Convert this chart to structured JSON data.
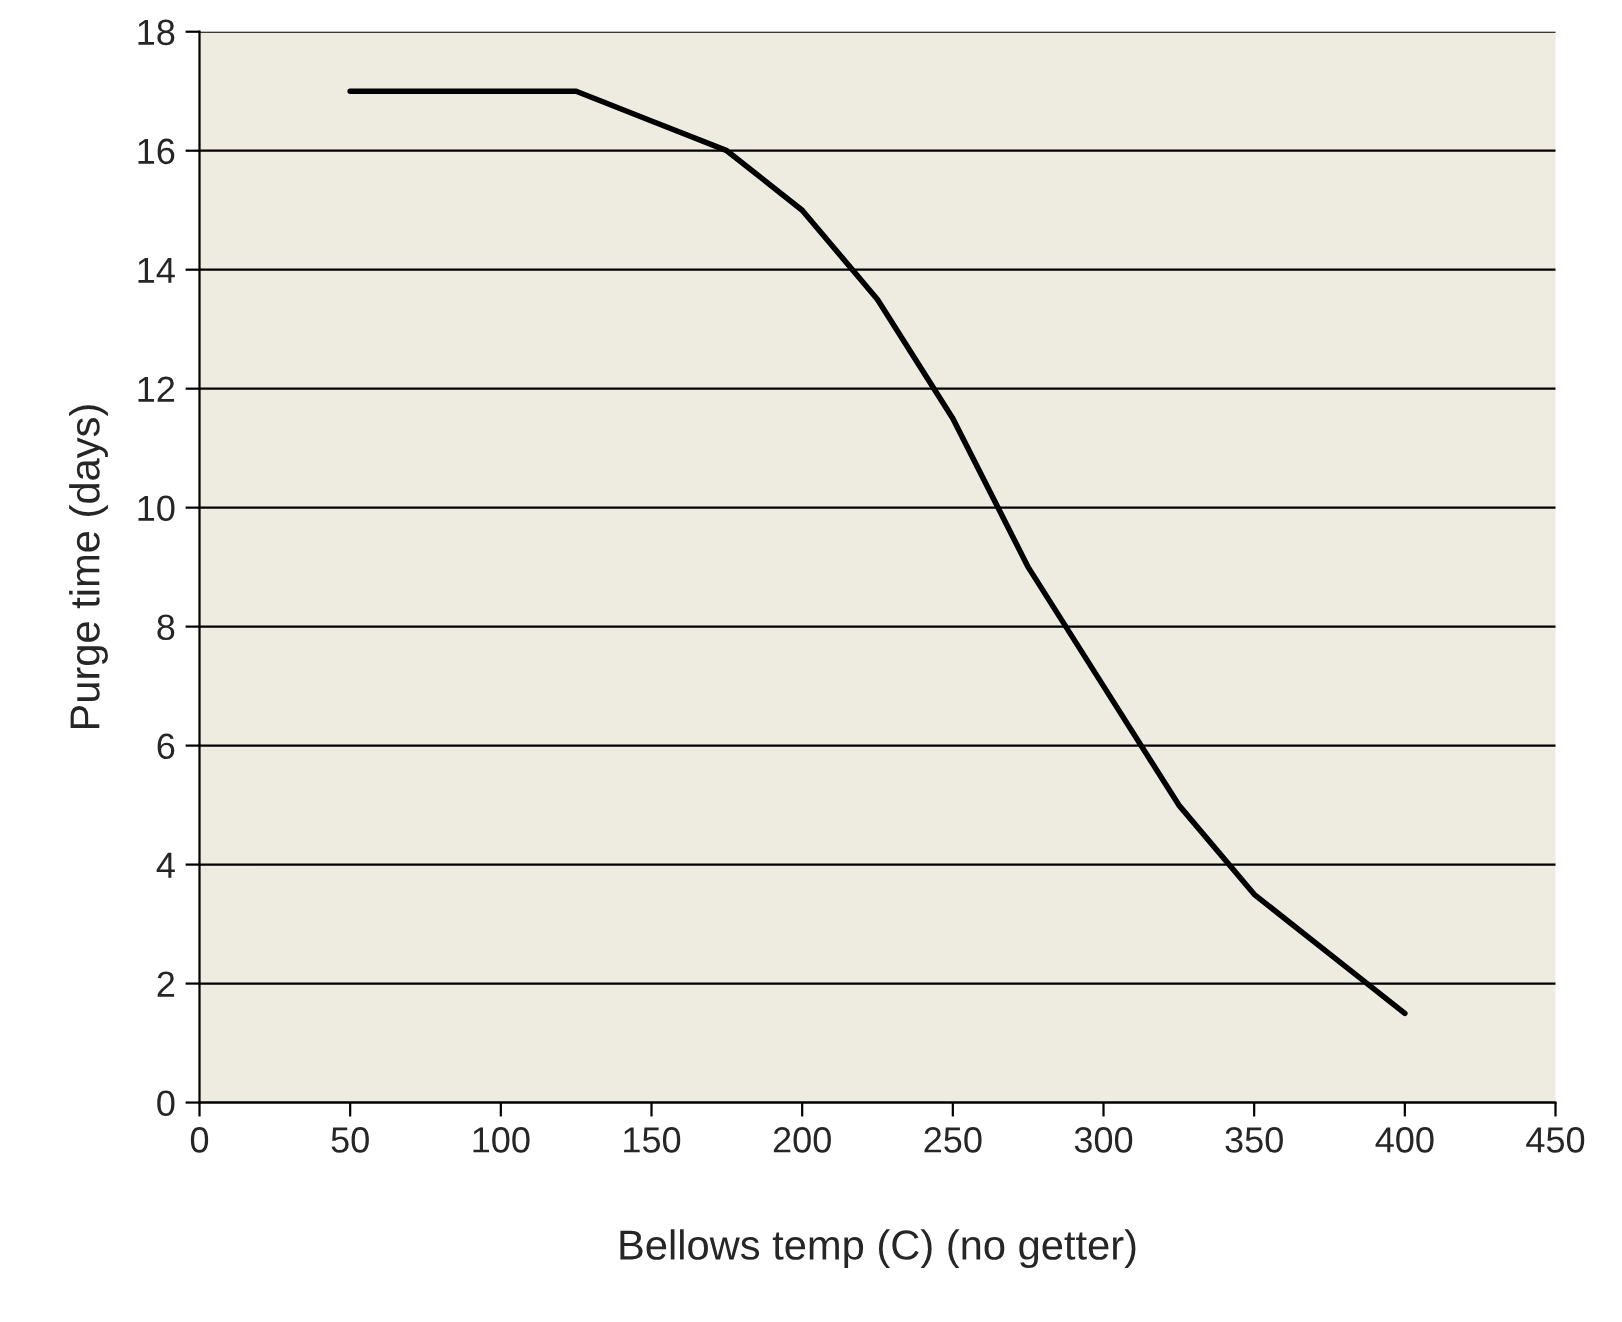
{
  "chart_data": {
    "type": "line",
    "xlabel": "Bellows temp (C) (no getter)",
    "ylabel": "Purge time (days)",
    "x": [
      50,
      75,
      100,
      125,
      150,
      175,
      200,
      225,
      250,
      275,
      300,
      325,
      350,
      375,
      400
    ],
    "series": [
      {
        "color": "#000000",
        "values": [
          17,
          17,
          17,
          17,
          16.5,
          16,
          15,
          13.5,
          11.5,
          9,
          7,
          5,
          3.5,
          2.5,
          1.5
        ]
      }
    ],
    "xlim": [
      0,
      450
    ],
    "xticks": [
      0,
      50,
      100,
      150,
      200,
      250,
      300,
      350,
      400,
      450
    ],
    "ylim": [
      0,
      18
    ],
    "yticks": [
      0,
      2,
      4,
      6,
      8,
      10,
      12,
      14,
      16,
      18
    ],
    "grid": "y",
    "marker": "none",
    "line_style": "solid",
    "legend": false
  }
}
